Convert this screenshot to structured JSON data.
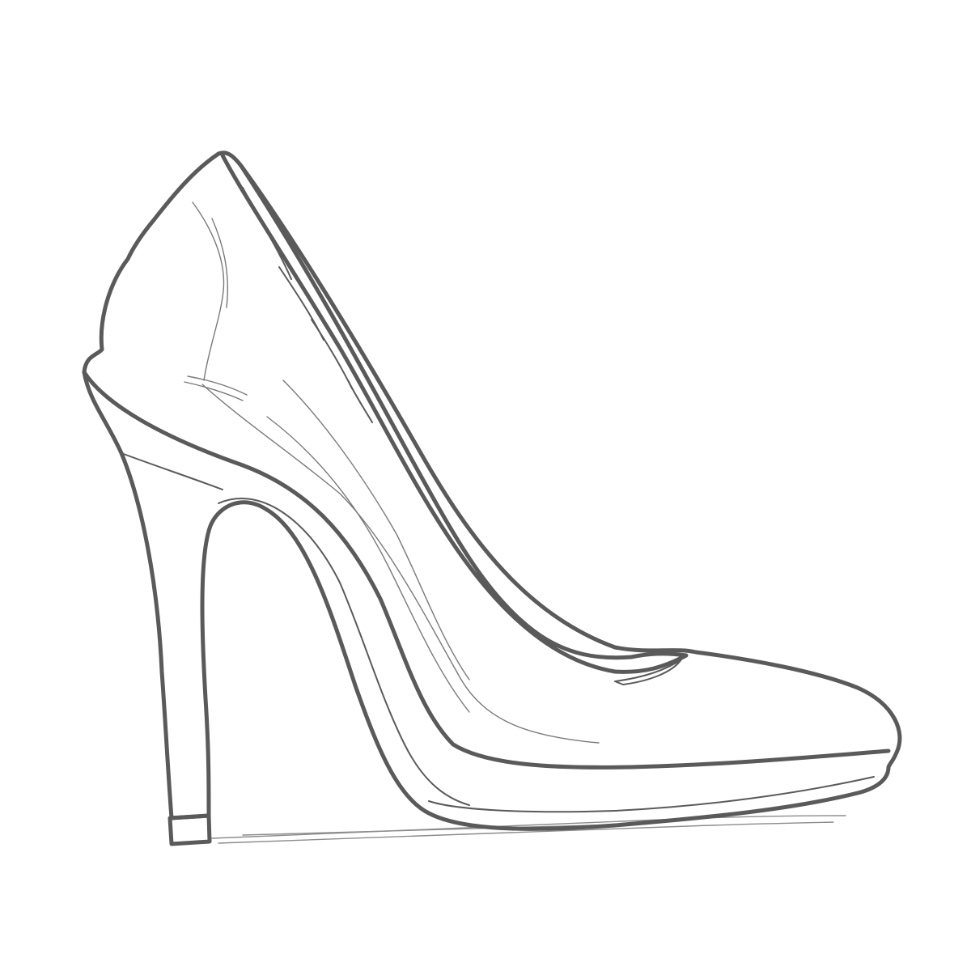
{
  "colors": {
    "background": "#ffffff",
    "line": "#5a5a5a",
    "sketch": "#7a7a7a",
    "shadow": "#8c8c8c"
  },
  "illustration": {
    "subject": "high-heel-shoe-icon"
  }
}
